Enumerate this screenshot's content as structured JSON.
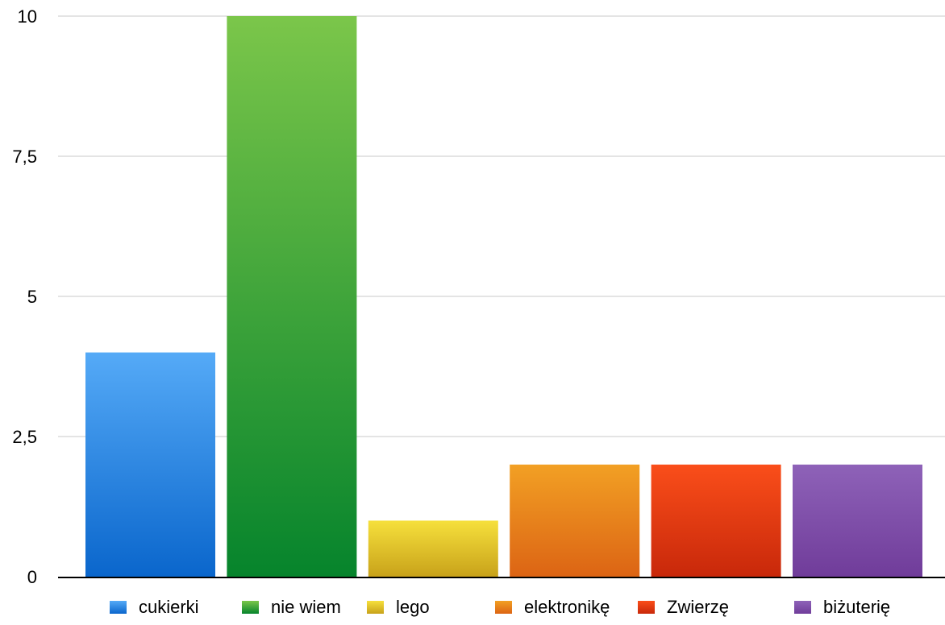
{
  "chart_data": {
    "type": "bar",
    "title": "",
    "xlabel": "",
    "ylabel": "",
    "categories": [
      "cukierki",
      "nie wiem",
      "lego",
      "elektronikę",
      "Zwierzę",
      "biżuterię"
    ],
    "values": [
      4,
      10,
      1,
      2,
      2,
      2
    ],
    "ylim": [
      0,
      10
    ],
    "yticks": [
      0,
      2.5,
      5,
      7.5,
      10
    ],
    "ytick_labels": [
      "0",
      "2,5",
      "5",
      "7,5",
      "10"
    ],
    "grid": true,
    "legend_position": "bottom",
    "colors": [
      {
        "top": "#55aaf7",
        "bottom": "#0a66cc"
      },
      {
        "top": "#7bc64a",
        "bottom": "#06842c"
      },
      {
        "top": "#f6e03c",
        "bottom": "#c8a21a"
      },
      {
        "top": "#f2a024",
        "bottom": "#dc6414"
      },
      {
        "top": "#fa4e1a",
        "bottom": "#c8280a"
      },
      {
        "top": "#8e62b8",
        "bottom": "#703c9a"
      }
    ]
  }
}
